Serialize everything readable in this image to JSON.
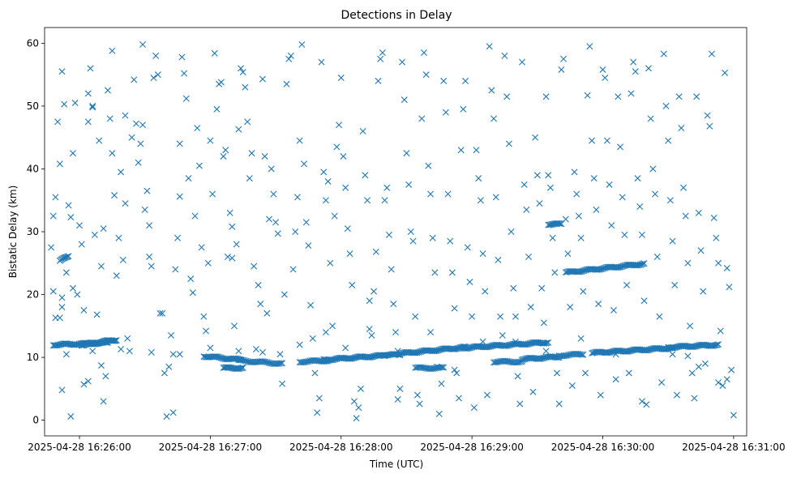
{
  "chart_data": {
    "type": "scatter",
    "title": "Detections in Delay",
    "xlabel": "Time (UTC)",
    "ylabel": "Bistatic Delay (km)",
    "marker": "x",
    "color": "#1f77b4",
    "x_unit": "seconds since 2025-04-28 16:25:44 UTC",
    "xlim": [
      0,
      322
    ],
    "ylim": [
      -2.5,
      62.5
    ],
    "x_ticks": [
      {
        "value": 16,
        "label": "2025-04-28 16:26:00"
      },
      {
        "value": 76,
        "label": "2025-04-28 16:27:00"
      },
      {
        "value": 136,
        "label": "2025-04-28 16:28:00"
      },
      {
        "value": 196,
        "label": "2025-04-28 16:29:00"
      },
      {
        "value": 256,
        "label": "2025-04-28 16:30:00"
      },
      {
        "value": 316,
        "label": "2025-04-28 16:31:00"
      }
    ],
    "y_ticks": [
      {
        "value": 0,
        "label": "0"
      },
      {
        "value": 10,
        "label": "10"
      },
      {
        "value": 20,
        "label": "20"
      },
      {
        "value": 30,
        "label": "30"
      },
      {
        "value": 40,
        "label": "40"
      },
      {
        "value": 50,
        "label": "50"
      },
      {
        "value": 60,
        "label": "60"
      }
    ],
    "tracks": [
      {
        "name": "track-1",
        "x_start": 4,
        "x_end": 29,
        "y_start": 12.0,
        "y_end": 12.3,
        "spacing": 0.6
      },
      {
        "name": "track-2",
        "x_start": 17,
        "x_end": 33,
        "y_start": 12.0,
        "y_end": 12.8,
        "spacing": 0.5
      },
      {
        "name": "track-3",
        "x_start": 73,
        "x_end": 90,
        "y_start": 10.2,
        "y_end": 9.6,
        "spacing": 0.6
      },
      {
        "name": "track-4",
        "x_start": 82,
        "x_end": 91,
        "y_start": 8.3,
        "y_end": 8.3,
        "spacing": 0.6
      },
      {
        "name": "track-5",
        "x_start": 89,
        "x_end": 109,
        "y_start": 9.5,
        "y_end": 9.0,
        "spacing": 0.7
      },
      {
        "name": "track-6",
        "x_start": 117,
        "x_end": 130,
        "y_start": 9.3,
        "y_end": 9.5,
        "spacing": 0.7
      },
      {
        "name": "track-7",
        "x_start": 128,
        "x_end": 156,
        "y_start": 9.6,
        "y_end": 10.3,
        "spacing": 0.6
      },
      {
        "name": "track-8",
        "x_start": 155,
        "x_end": 163,
        "y_start": 10.4,
        "y_end": 10.4,
        "spacing": 0.6
      },
      {
        "name": "track-9",
        "x_start": 163,
        "x_end": 193,
        "y_start": 10.6,
        "y_end": 11.6,
        "spacing": 0.6
      },
      {
        "name": "track-10",
        "x_start": 170,
        "x_end": 183,
        "y_start": 8.3,
        "y_end": 8.3,
        "spacing": 0.7
      },
      {
        "name": "track-11",
        "x_start": 192,
        "x_end": 231,
        "y_start": 11.5,
        "y_end": 12.4,
        "spacing": 0.6
      },
      {
        "name": "track-12",
        "x_start": 206,
        "x_end": 219,
        "y_start": 9.3,
        "y_end": 9.3,
        "spacing": 0.7
      },
      {
        "name": "track-13",
        "x_start": 219,
        "x_end": 236,
        "y_start": 9.7,
        "y_end": 10.1,
        "spacing": 0.6
      },
      {
        "name": "track-14",
        "x_start": 236,
        "x_end": 247,
        "y_start": 10.3,
        "y_end": 10.5,
        "spacing": 0.7
      },
      {
        "name": "track-15",
        "x_start": 239,
        "x_end": 275,
        "y_start": 23.5,
        "y_end": 24.9,
        "spacing": 0.6
      },
      {
        "name": "track-16",
        "x_start": 251,
        "x_end": 288,
        "y_start": 10.7,
        "y_end": 11.5,
        "spacing": 0.6
      },
      {
        "name": "track-17",
        "x_start": 286,
        "x_end": 309,
        "y_start": 11.6,
        "y_end": 12.0,
        "spacing": 0.6
      },
      {
        "name": "track-18",
        "x_start": 231,
        "x_end": 237,
        "y_start": 31.2,
        "y_end": 31.2,
        "spacing": 0.6
      },
      {
        "name": "track-19",
        "x_start": 7,
        "x_end": 11,
        "y_start": 25.3,
        "y_end": 26.2,
        "spacing": 0.5
      }
    ],
    "scatter_points": [
      [
        3,
        27.5
      ],
      [
        4,
        20.5
      ],
      [
        4,
        32.5
      ],
      [
        5,
        35.5
      ],
      [
        6,
        47.5
      ],
      [
        5,
        16.3
      ],
      [
        7,
        16.3
      ],
      [
        7,
        40.8
      ],
      [
        8,
        55.5
      ],
      [
        9,
        50.3
      ],
      [
        8,
        19.5
      ],
      [
        8,
        18.0
      ],
      [
        8,
        4.8
      ],
      [
        10,
        23.5
      ],
      [
        11,
        34.2
      ],
      [
        12,
        32.3
      ],
      [
        13,
        42.5
      ],
      [
        14,
        50.5
      ],
      [
        13,
        21.0
      ],
      [
        15,
        20.0
      ],
      [
        16,
        31.0
      ],
      [
        17,
        28.0
      ],
      [
        18,
        17.5
      ],
      [
        20,
        52.0
      ],
      [
        20,
        47.5
      ],
      [
        21,
        56.0
      ],
      [
        22,
        50.0
      ],
      [
        22,
        49.8
      ],
      [
        23,
        29.5
      ],
      [
        24,
        16.8
      ],
      [
        25,
        44.5
      ],
      [
        27,
        30.5
      ],
      [
        26,
        24.5
      ],
      [
        12,
        0.6
      ],
      [
        18,
        5.7
      ],
      [
        20,
        6.2
      ],
      [
        26,
        8.7
      ],
      [
        27,
        3.0
      ],
      [
        28,
        7.0
      ],
      [
        29,
        52.5
      ],
      [
        30,
        48.0
      ],
      [
        31,
        58.8
      ],
      [
        31,
        42.5
      ],
      [
        32,
        35.8
      ],
      [
        33,
        23.0
      ],
      [
        34,
        29.0
      ],
      [
        35,
        39.5
      ],
      [
        36,
        25.5
      ],
      [
        37,
        48.5
      ],
      [
        37,
        34.5
      ],
      [
        38,
        13.0
      ],
      [
        39,
        11.0
      ],
      [
        40,
        45.0
      ],
      [
        41,
        54.2
      ],
      [
        42,
        47.2
      ],
      [
        43,
        41.0
      ],
      [
        44,
        44.0
      ],
      [
        45,
        59.8
      ],
      [
        45,
        47.0
      ],
      [
        46,
        33.5
      ],
      [
        47,
        36.5
      ],
      [
        48,
        31.0
      ],
      [
        48,
        26.0
      ],
      [
        49,
        24.5
      ],
      [
        50,
        54.5
      ],
      [
        51,
        58.0
      ],
      [
        52,
        55.0
      ],
      [
        53,
        17.0
      ],
      [
        54,
        17.0
      ],
      [
        55,
        7.5
      ],
      [
        56,
        0.6
      ],
      [
        57,
        8.5
      ],
      [
        58,
        13.5
      ],
      [
        59,
        10.5
      ],
      [
        59,
        1.2
      ],
      [
        60,
        24.0
      ],
      [
        61,
        29.0
      ],
      [
        62,
        35.6
      ],
      [
        62,
        44.0
      ],
      [
        63,
        57.8
      ],
      [
        64,
        55.2
      ],
      [
        65,
        51.2
      ],
      [
        66,
        38.5
      ],
      [
        67,
        22.5
      ],
      [
        68,
        20.3
      ],
      [
        69,
        32.5
      ],
      [
        70,
        46.5
      ],
      [
        71,
        40.5
      ],
      [
        72,
        27.5
      ],
      [
        73,
        16.5
      ],
      [
        74,
        14.2
      ],
      [
        75,
        25.0
      ],
      [
        76,
        44.5
      ],
      [
        77,
        36.0
      ],
      [
        78,
        58.4
      ],
      [
        79,
        49.5
      ],
      [
        80,
        53.5
      ],
      [
        81,
        53.8
      ],
      [
        82,
        42.0
      ],
      [
        83,
        43.0
      ],
      [
        84,
        26.0
      ],
      [
        85,
        33.0
      ],
      [
        86,
        30.8
      ],
      [
        86,
        25.8
      ],
      [
        87,
        15.0
      ],
      [
        88,
        28.0
      ],
      [
        89,
        46.3
      ],
      [
        90,
        56.0
      ],
      [
        91,
        55.4
      ],
      [
        92,
        53.0
      ],
      [
        93,
        47.5
      ],
      [
        94,
        38.5
      ],
      [
        95,
        42.5
      ],
      [
        96,
        24.5
      ],
      [
        97,
        11.3
      ],
      [
        98,
        21.5
      ],
      [
        99,
        18.5
      ],
      [
        100,
        54.3
      ],
      [
        101,
        42.0
      ],
      [
        102,
        17.0
      ],
      [
        103,
        32.0
      ],
      [
        104,
        40.0
      ],
      [
        105,
        36.0
      ],
      [
        106,
        31.5
      ],
      [
        107,
        29.7
      ],
      [
        108,
        10.5
      ],
      [
        109,
        5.8
      ],
      [
        110,
        20.0
      ],
      [
        111,
        53.5
      ],
      [
        112,
        57.5
      ],
      [
        113,
        58.0
      ],
      [
        114,
        24.0
      ],
      [
        115,
        30.0
      ],
      [
        116,
        35.5
      ],
      [
        117,
        44.5
      ],
      [
        118,
        59.8
      ],
      [
        119,
        40.8
      ],
      [
        120,
        31.5
      ],
      [
        121,
        27.8
      ],
      [
        122,
        18.3
      ],
      [
        123,
        13.0
      ],
      [
        124,
        7.5
      ],
      [
        125,
        1.2
      ],
      [
        126,
        3.5
      ],
      [
        127,
        57.0
      ],
      [
        128,
        39.5
      ],
      [
        129,
        35.0
      ],
      [
        130,
        38.0
      ],
      [
        131,
        25.0
      ],
      [
        132,
        15.0
      ],
      [
        133,
        32.5
      ],
      [
        134,
        43.5
      ],
      [
        135,
        47.0
      ],
      [
        136,
        54.5
      ],
      [
        137,
        42.0
      ],
      [
        138,
        37.0
      ],
      [
        139,
        30.5
      ],
      [
        140,
        26.5
      ],
      [
        141,
        21.5
      ],
      [
        142,
        3.0
      ],
      [
        143,
        0.3
      ],
      [
        144,
        2.0
      ],
      [
        145,
        5.0
      ],
      [
        146,
        46.0
      ],
      [
        147,
        39.0
      ],
      [
        148,
        35.0
      ],
      [
        149,
        19.0
      ],
      [
        150,
        13.5
      ],
      [
        151,
        20.5
      ],
      [
        152,
        26.8
      ],
      [
        153,
        54.0
      ],
      [
        154,
        57.5
      ],
      [
        155,
        58.5
      ],
      [
        156,
        35.0
      ],
      [
        157,
        37.0
      ],
      [
        158,
        29.5
      ],
      [
        159,
        24.0
      ],
      [
        160,
        18.5
      ],
      [
        161,
        14.0
      ],
      [
        162,
        3.3
      ],
      [
        163,
        5.0
      ],
      [
        164,
        57.0
      ],
      [
        165,
        51.0
      ],
      [
        166,
        42.5
      ],
      [
        167,
        37.5
      ],
      [
        168,
        30.0
      ],
      [
        169,
        28.5
      ],
      [
        170,
        16.5
      ],
      [
        171,
        4.0
      ],
      [
        172,
        2.6
      ],
      [
        173,
        48.0
      ],
      [
        174,
        58.5
      ],
      [
        175,
        55.0
      ],
      [
        176,
        40.5
      ],
      [
        177,
        36.0
      ],
      [
        178,
        29.0
      ],
      [
        179,
        23.5
      ],
      [
        180,
        8.5
      ],
      [
        181,
        1.0
      ],
      [
        182,
        5.8
      ],
      [
        183,
        54.0
      ],
      [
        184,
        49.0
      ],
      [
        185,
        36.0
      ],
      [
        186,
        28.5
      ],
      [
        187,
        23.5
      ],
      [
        188,
        17.8
      ],
      [
        189,
        7.5
      ],
      [
        190,
        3.5
      ],
      [
        191,
        43.0
      ],
      [
        192,
        49.5
      ],
      [
        193,
        54.0
      ],
      [
        194,
        27.5
      ],
      [
        195,
        22.0
      ],
      [
        196,
        16.5
      ],
      [
        197,
        2.0
      ],
      [
        198,
        43.0
      ],
      [
        199,
        38.5
      ],
      [
        200,
        35.0
      ],
      [
        201,
        26.5
      ],
      [
        202,
        20.5
      ],
      [
        203,
        4.0
      ],
      [
        204,
        59.5
      ],
      [
        205,
        52.5
      ],
      [
        206,
        48.0
      ],
      [
        207,
        35.5
      ],
      [
        208,
        25.5
      ],
      [
        209,
        16.5
      ],
      [
        210,
        13.5
      ],
      [
        211,
        58.0
      ],
      [
        212,
        51.5
      ],
      [
        213,
        44.0
      ],
      [
        214,
        30.0
      ],
      [
        215,
        21.0
      ],
      [
        216,
        16.5
      ],
      [
        217,
        7.0
      ],
      [
        218,
        2.6
      ],
      [
        219,
        57.0
      ],
      [
        220,
        37.5
      ],
      [
        221,
        33.5
      ],
      [
        222,
        26.0
      ],
      [
        223,
        18.0
      ],
      [
        224,
        4.5
      ],
      [
        225,
        45.0
      ],
      [
        226,
        39.0
      ],
      [
        227,
        34.5
      ],
      [
        228,
        21.0
      ],
      [
        229,
        15.5
      ],
      [
        230,
        51.5
      ],
      [
        231,
        39.0
      ],
      [
        232,
        37.0
      ],
      [
        233,
        29.0
      ],
      [
        234,
        23.5
      ],
      [
        235,
        7.5
      ],
      [
        236,
        2.6
      ],
      [
        237,
        55.8
      ],
      [
        238,
        57.5
      ],
      [
        239,
        32.0
      ],
      [
        240,
        26.5
      ],
      [
        241,
        18.0
      ],
      [
        242,
        5.5
      ],
      [
        243,
        39.5
      ],
      [
        244,
        36.0
      ],
      [
        245,
        32.5
      ],
      [
        246,
        29.0
      ],
      [
        247,
        20.5
      ],
      [
        248,
        7.5
      ],
      [
        249,
        51.7
      ],
      [
        250,
        59.5
      ],
      [
        251,
        44.5
      ],
      [
        252,
        38.5
      ],
      [
        253,
        33.5
      ],
      [
        254,
        18.5
      ],
      [
        255,
        4.0
      ],
      [
        256,
        55.8
      ],
      [
        257,
        54.5
      ],
      [
        258,
        44.5
      ],
      [
        259,
        37.5
      ],
      [
        260,
        31.0
      ],
      [
        261,
        17.5
      ],
      [
        262,
        10.5
      ],
      [
        263,
        51.5
      ],
      [
        264,
        43.5
      ],
      [
        265,
        35.5
      ],
      [
        266,
        29.5
      ],
      [
        267,
        21.5
      ],
      [
        268,
        7.5
      ],
      [
        269,
        52.0
      ],
      [
        270,
        57.0
      ],
      [
        271,
        55.5
      ],
      [
        272,
        38.5
      ],
      [
        273,
        34.0
      ],
      [
        274,
        29.5
      ],
      [
        275,
        19.0
      ],
      [
        276,
        2.5
      ],
      [
        277,
        56.0
      ],
      [
        278,
        48.0
      ],
      [
        279,
        40.0
      ],
      [
        280,
        36.0
      ],
      [
        281,
        26.0
      ],
      [
        282,
        16.5
      ],
      [
        283,
        6.0
      ],
      [
        284,
        58.3
      ],
      [
        285,
        50.0
      ],
      [
        286,
        44.5
      ],
      [
        287,
        35.0
      ],
      [
        288,
        28.5
      ],
      [
        289,
        21.5
      ],
      [
        290,
        4.0
      ],
      [
        291,
        51.5
      ],
      [
        292,
        46.5
      ],
      [
        293,
        37.0
      ],
      [
        294,
        32.5
      ],
      [
        295,
        25.0
      ],
      [
        296,
        15.0
      ],
      [
        297,
        7.5
      ],
      [
        298,
        3.5
      ],
      [
        299,
        51.5
      ],
      [
        300,
        33.0
      ],
      [
        301,
        27.0
      ],
      [
        302,
        20.5
      ],
      [
        303,
        9.0
      ],
      [
        304,
        48.5
      ],
      [
        305,
        46.8
      ],
      [
        306,
        58.3
      ],
      [
        307,
        32.2
      ],
      [
        308,
        29.0
      ],
      [
        309,
        25.0
      ],
      [
        310,
        14.2
      ],
      [
        311,
        5.5
      ],
      [
        312,
        55.3
      ],
      [
        313,
        24.2
      ],
      [
        314,
        21.2
      ],
      [
        315,
        8.0
      ],
      [
        316,
        0.8
      ],
      [
        313,
        6.5
      ],
      [
        309,
        6.0
      ],
      [
        300,
        8.5
      ],
      [
        295,
        10.2
      ],
      [
        288,
        10.5
      ],
      [
        274,
        3.0
      ],
      [
        262,
        6.5
      ],
      [
        246,
        13.0
      ],
      [
        230,
        11.0
      ],
      [
        216,
        12.5
      ],
      [
        201,
        12.5
      ],
      [
        188,
        8.0
      ],
      [
        177,
        14.0
      ],
      [
        162,
        11.0
      ],
      [
        149,
        14.5
      ],
      [
        138,
        11.5
      ],
      [
        129,
        14.0
      ],
      [
        117,
        12.0
      ],
      [
        100,
        10.8
      ],
      [
        89,
        11.0
      ],
      [
        76,
        11.5
      ],
      [
        62,
        10.5
      ],
      [
        49,
        10.8
      ],
      [
        35,
        11.3
      ],
      [
        22,
        11.0
      ],
      [
        10,
        10.5
      ]
    ]
  }
}
